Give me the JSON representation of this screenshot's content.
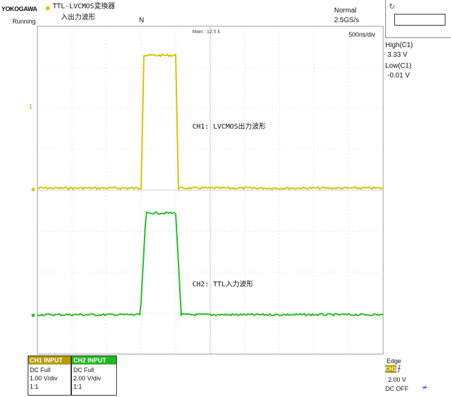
{
  "header": {
    "brand": "YOKOGAWA",
    "status": "Running",
    "title_line1": "TTL-LVCMOS変換器",
    "title_line2": "入出力波形",
    "trigger_marker": "N",
    "acquisition_mode": "Normal",
    "sample_rate": "2.5GS/s",
    "main_record": "Main : 12.5 k",
    "timebase": "500ns/div"
  },
  "measurements": {
    "high_label": "High(C1)",
    "high_value": "3.33 V",
    "low_label": "Low(C1)",
    "low_value": "-0.01 V"
  },
  "annotations": {
    "ch1": "CH1:  LVCMOS出力波形",
    "ch2": "CH2:  TTL入力波形"
  },
  "channels": [
    {
      "head": "CH1 INPUT",
      "coupling": "DC Full",
      "scale": "1.00 V/div",
      "probe": "1:1",
      "color": "#d6c300"
    },
    {
      "head": "CH2 INPUT",
      "coupling": "DC Full",
      "scale": "2.00 V/div",
      "probe": "1:1",
      "color": "#22c022"
    }
  ],
  "trigger": {
    "type": "Edge",
    "source": "CH1",
    "level": "2.00 V",
    "coupling": "DC OFF",
    "slope_icon": "rising-edge-icon",
    "noise_icon": "noise-reject-icon"
  },
  "ch1_marker": "1",
  "refresh_icon": "refresh-icon"
}
